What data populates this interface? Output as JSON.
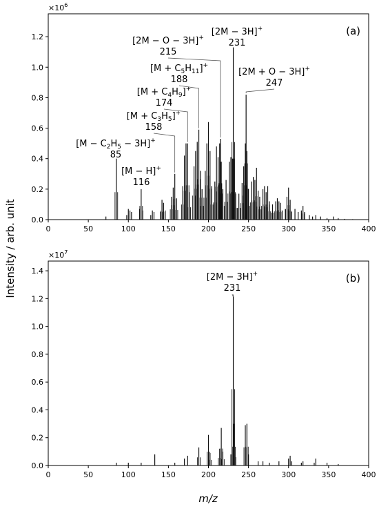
{
  "figure": {
    "ylabel": "Intensity / arb. unit",
    "xlabel": "m/z"
  },
  "chart_data": [
    {
      "type": "line",
      "panel_label": "(a)",
      "multiplier": "×10",
      "multiplier_exp": "6",
      "xlim": [
        0,
        400
      ],
      "ylim": [
        0,
        1.35
      ],
      "xticks": [
        0,
        50,
        100,
        150,
        200,
        250,
        300,
        350,
        400
      ],
      "yticks": [
        "0.0",
        "0.2",
        "0.4",
        "0.6",
        "0.8",
        "1.0",
        "1.2"
      ],
      "x": [
        72,
        85,
        98,
        100,
        102,
        104,
        114,
        116,
        118,
        128,
        130,
        132,
        140,
        142,
        144,
        146,
        154,
        156,
        158,
        160,
        168,
        170,
        172,
        174,
        176,
        182,
        184,
        186,
        188,
        190,
        192,
        196,
        198,
        200,
        202,
        204,
        208,
        210,
        212,
        214,
        215,
        216,
        218,
        222,
        226,
        228,
        230,
        231,
        232,
        234,
        238,
        242,
        244,
        246,
        247,
        248,
        250,
        254,
        256,
        258,
        260,
        262,
        264,
        268,
        270,
        272,
        274,
        276,
        280,
        284,
        286,
        288,
        290,
        292,
        296,
        298,
        300,
        302,
        304,
        308,
        312,
        316,
        318,
        320,
        326,
        330,
        334,
        340,
        348,
        356,
        362,
        370,
        380
      ],
      "y": [
        0.02,
        0.4,
        0.03,
        0.07,
        0.06,
        0.05,
        0.07,
        0.2,
        0.06,
        0.03,
        0.06,
        0.05,
        0.05,
        0.13,
        0.11,
        0.06,
        0.15,
        0.21,
        0.3,
        0.14,
        0.22,
        0.42,
        0.5,
        0.5,
        0.18,
        0.35,
        0.45,
        0.51,
        0.59,
        0.32,
        0.2,
        0.32,
        0.5,
        0.64,
        0.45,
        0.22,
        0.25,
        0.48,
        0.41,
        0.5,
        0.53,
        0.38,
        0.2,
        0.26,
        0.38,
        0.41,
        0.4,
        1.13,
        0.4,
        0.17,
        0.17,
        0.24,
        0.35,
        0.5,
        0.82,
        0.45,
        0.2,
        0.25,
        0.28,
        0.26,
        0.34,
        0.19,
        0.15,
        0.2,
        0.22,
        0.18,
        0.22,
        0.12,
        0.1,
        0.12,
        0.14,
        0.12,
        0.11,
        0.06,
        0.07,
        0.15,
        0.21,
        0.13,
        0.05,
        0.07,
        0.05,
        0.06,
        0.09,
        0.05,
        0.03,
        0.02,
        0.03,
        0.02,
        0.01,
        0.02,
        0.01,
        0.005,
        0.003
      ],
      "annotations": [
        {
          "x": 85,
          "y": 0.4,
          "label": "[M − C",
          "sub": "2",
          "label2": "H",
          "sub2": "5",
          "label3": " − 3H]",
          "sup": "+",
          "value": "85"
        },
        {
          "x": 116,
          "y": 0.2,
          "label": "[M − H]",
          "sup": "+",
          "value": "116"
        },
        {
          "x": 158,
          "y": 0.3,
          "label": "[M + C",
          "sub": "3",
          "label2": "H",
          "sub2": "5",
          "label3": "]",
          "sup": "+",
          "value": "158"
        },
        {
          "x": 174,
          "y": 0.5,
          "label": "[M + C",
          "sub": "4",
          "label2": "H",
          "sub2": "9",
          "label3": "]",
          "sup": "+",
          "value": "174"
        },
        {
          "x": 188,
          "y": 0.59,
          "label": "[M + C",
          "sub": "5",
          "label2": "H",
          "sub2": "11",
          "label3": "]",
          "sup": "+",
          "value": "188"
        },
        {
          "x": 215,
          "y": 0.53,
          "label": "[2M − O − 3H]",
          "sup": "+",
          "value": "215"
        },
        {
          "x": 231,
          "y": 1.13,
          "label": "[2M − 3H]",
          "sup": "+",
          "value": "231"
        },
        {
          "x": 247,
          "y": 0.82,
          "label": "[2M + O − 3H]",
          "sup": "+",
          "value": "247"
        }
      ]
    },
    {
      "type": "line",
      "panel_label": "(b)",
      "multiplier": "×10",
      "multiplier_exp": "7",
      "xlim": [
        0,
        400
      ],
      "ylim": [
        0,
        1.47
      ],
      "xticks": [
        0,
        50,
        100,
        150,
        200,
        250,
        300,
        350,
        400
      ],
      "yticks": [
        "0.0",
        "0.2",
        "0.4",
        "0.6",
        "0.8",
        "1.0",
        "1.2",
        "1.4"
      ],
      "x": [
        85,
        100,
        116,
        133,
        158,
        170,
        174,
        188,
        200,
        202,
        214,
        216,
        218,
        228,
        231,
        232,
        234,
        246,
        248,
        250,
        262,
        268,
        276,
        288,
        300,
        302,
        304,
        316,
        318,
        332,
        334,
        348,
        362
      ],
      "y": [
        0.02,
        0.02,
        0.02,
        0.08,
        0.02,
        0.05,
        0.07,
        0.13,
        0.22,
        0.09,
        0.12,
        0.27,
        0.1,
        0.08,
        1.22,
        0.3,
        0.06,
        0.29,
        0.3,
        0.08,
        0.03,
        0.03,
        0.02,
        0.03,
        0.05,
        0.07,
        0.03,
        0.02,
        0.03,
        0.02,
        0.05,
        0.02,
        0.01
      ],
      "annotations": [
        {
          "x": 231,
          "y": 1.22,
          "label": "[2M − 3H]",
          "sup": "+",
          "value": "231"
        }
      ]
    }
  ]
}
